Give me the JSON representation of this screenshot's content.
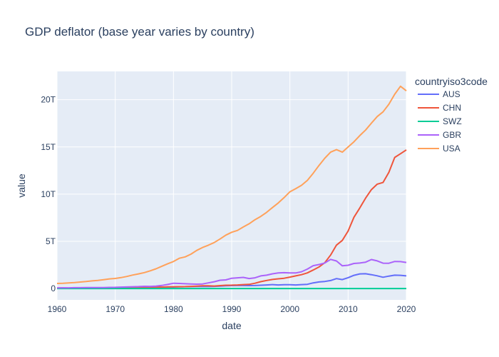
{
  "chart_data": {
    "type": "line",
    "title": "GDP deflator (base year varies by country)",
    "xlabel": "date",
    "ylabel": "value",
    "xlim": [
      1960,
      2020
    ],
    "ylim": [
      -1.2,
      23
    ],
    "x_ticks": [
      1960,
      1970,
      1980,
      1990,
      2000,
      2010,
      2020
    ],
    "y_ticks": [
      0,
      5,
      10,
      15,
      20
    ],
    "y_tick_labels": [
      "0",
      "5T",
      "10T",
      "15T",
      "20T"
    ],
    "y_unit": "T",
    "grid": true,
    "legend_title": "countryiso3code",
    "legend_position": "right",
    "x": [
      1960,
      1961,
      1962,
      1963,
      1964,
      1965,
      1966,
      1967,
      1968,
      1969,
      1970,
      1971,
      1972,
      1973,
      1974,
      1975,
      1976,
      1977,
      1978,
      1979,
      1980,
      1981,
      1982,
      1983,
      1984,
      1985,
      1986,
      1987,
      1988,
      1989,
      1990,
      1991,
      1992,
      1993,
      1994,
      1995,
      1996,
      1997,
      1998,
      1999,
      2000,
      2001,
      2002,
      2003,
      2004,
      2005,
      2006,
      2007,
      2008,
      2009,
      2010,
      2011,
      2012,
      2013,
      2014,
      2015,
      2016,
      2017,
      2018,
      2019,
      2020
    ],
    "series": [
      {
        "name": "AUS",
        "color": "#636efa",
        "values": [
          0.02,
          0.02,
          0.02,
          0.02,
          0.03,
          0.03,
          0.03,
          0.03,
          0.04,
          0.04,
          0.05,
          0.05,
          0.06,
          0.07,
          0.09,
          0.1,
          0.12,
          0.13,
          0.14,
          0.15,
          0.16,
          0.18,
          0.2,
          0.21,
          0.22,
          0.22,
          0.22,
          0.23,
          0.26,
          0.3,
          0.31,
          0.32,
          0.32,
          0.31,
          0.32,
          0.35,
          0.38,
          0.42,
          0.38,
          0.4,
          0.41,
          0.38,
          0.42,
          0.45,
          0.6,
          0.7,
          0.75,
          0.85,
          1.05,
          0.95,
          1.15,
          1.4,
          1.55,
          1.57,
          1.47,
          1.35,
          1.2,
          1.32,
          1.42,
          1.4,
          1.34
        ]
      },
      {
        "name": "CHN",
        "color": "#ef553b",
        "values": [
          0.06,
          0.06,
          0.05,
          0.05,
          0.06,
          0.07,
          0.08,
          0.07,
          0.07,
          0.08,
          0.09,
          0.1,
          0.11,
          0.13,
          0.14,
          0.16,
          0.15,
          0.17,
          0.15,
          0.18,
          0.19,
          0.2,
          0.21,
          0.23,
          0.26,
          0.3,
          0.3,
          0.27,
          0.31,
          0.35,
          0.36,
          0.38,
          0.42,
          0.44,
          0.56,
          0.73,
          0.86,
          0.96,
          1.03,
          1.09,
          1.21,
          1.34,
          1.47,
          1.66,
          1.96,
          2.29,
          2.75,
          3.55,
          4.6,
          5.1,
          6.09,
          7.55,
          8.53,
          9.57,
          10.48,
          11.06,
          11.23,
          12.31,
          13.89,
          14.28,
          14.69
        ]
      },
      {
        "name": "SWZ",
        "color": "#00cc96",
        "values": [
          0,
          0,
          0,
          0,
          0,
          0,
          0,
          0,
          0,
          0,
          0,
          0,
          0,
          0,
          0,
          0,
          0,
          0,
          0,
          0,
          0,
          0,
          0,
          0,
          0,
          0,
          0,
          0,
          0,
          0,
          0,
          0,
          0,
          0,
          0,
          0,
          0,
          0,
          0,
          0,
          0,
          0,
          0,
          0,
          0,
          0,
          0,
          0,
          0,
          0,
          0,
          0,
          0,
          0,
          0,
          0,
          0,
          0,
          0,
          0,
          0
        ]
      },
      {
        "name": "GBR",
        "color": "#ab63fa",
        "values": [
          0.07,
          0.08,
          0.08,
          0.09,
          0.09,
          0.1,
          0.11,
          0.11,
          0.11,
          0.12,
          0.13,
          0.15,
          0.17,
          0.19,
          0.21,
          0.24,
          0.23,
          0.26,
          0.33,
          0.43,
          0.56,
          0.54,
          0.51,
          0.49,
          0.46,
          0.49,
          0.6,
          0.72,
          0.88,
          0.92,
          1.09,
          1.14,
          1.18,
          1.06,
          1.14,
          1.34,
          1.42,
          1.56,
          1.65,
          1.68,
          1.66,
          1.65,
          1.78,
          2.06,
          2.42,
          2.54,
          2.71,
          3.09,
          2.92,
          2.41,
          2.47,
          2.66,
          2.7,
          2.79,
          3.07,
          2.93,
          2.69,
          2.68,
          2.87,
          2.85,
          2.76
        ]
      },
      {
        "name": "USA",
        "color": "#ffa15a",
        "values": [
          0.54,
          0.56,
          0.6,
          0.64,
          0.69,
          0.74,
          0.81,
          0.86,
          0.94,
          1.02,
          1.07,
          1.16,
          1.28,
          1.43,
          1.55,
          1.69,
          1.88,
          2.09,
          2.36,
          2.63,
          2.86,
          3.21,
          3.35,
          3.64,
          4.04,
          4.35,
          4.59,
          4.87,
          5.25,
          5.66,
          5.96,
          6.16,
          6.52,
          6.86,
          7.29,
          7.64,
          8.07,
          8.58,
          9.06,
          9.63,
          10.25,
          10.58,
          10.94,
          11.46,
          12.21,
          13.04,
          13.81,
          14.45,
          14.71,
          14.45,
          14.99,
          15.54,
          16.2,
          16.78,
          17.52,
          18.22,
          18.71,
          19.52,
          20.58,
          21.43,
          20.94
        ]
      }
    ]
  }
}
